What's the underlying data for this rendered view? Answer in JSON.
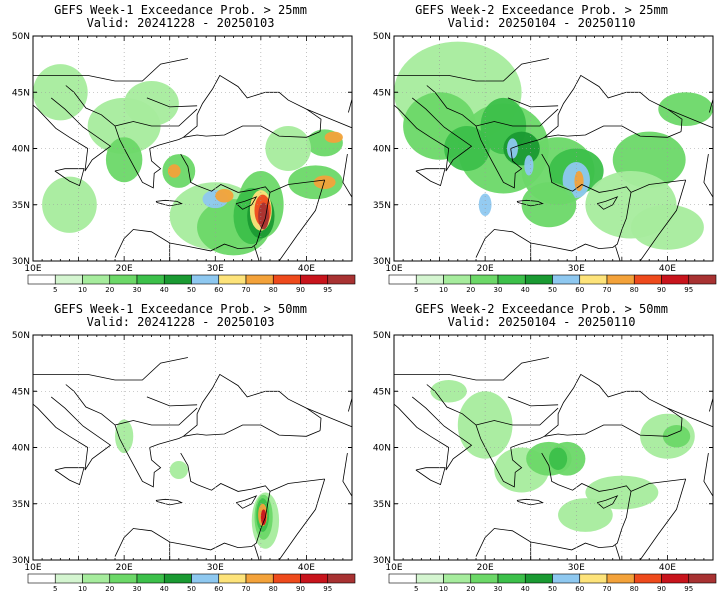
{
  "panels": [
    {
      "id": "w1_25",
      "title": "GEFS Week-1 Exceedance Prob. > 25mm",
      "valid": "Valid: 20241228 - 20250103"
    },
    {
      "id": "w2_25",
      "title": "GEFS Week-2 Exceedance Prob. > 25mm",
      "valid": "Valid: 20250104 - 20250110"
    },
    {
      "id": "w1_50",
      "title": "GEFS Week-1 Exceedance Prob. > 50mm",
      "valid": "Valid: 20241228 - 20250103"
    },
    {
      "id": "w2_50",
      "title": "GEFS Week-2 Exceedance Prob. > 50mm",
      "valid": "Valid: 20250104 - 20250110"
    }
  ],
  "axes": {
    "lon_labels": [
      "10E",
      "20E",
      "30E",
      "40E"
    ],
    "lat_labels": [
      "50N",
      "45N",
      "40N",
      "35N",
      "30N"
    ]
  },
  "colorbar": {
    "ticks": [
      "5",
      "10",
      "20",
      "30",
      "40",
      "50",
      "60",
      "70",
      "80",
      "90",
      "95"
    ],
    "colors": [
      "#ffffff",
      "#d4f5d0",
      "#a6ec9d",
      "#6cd868",
      "#3cc04a",
      "#1a9a32",
      "#8ec8f0",
      "#fde37a",
      "#f3a23a",
      "#ee4a1c",
      "#c8141c",
      "#a83232"
    ]
  },
  "land_color": "#ffffff",
  "boundary_color": "#000000"
}
